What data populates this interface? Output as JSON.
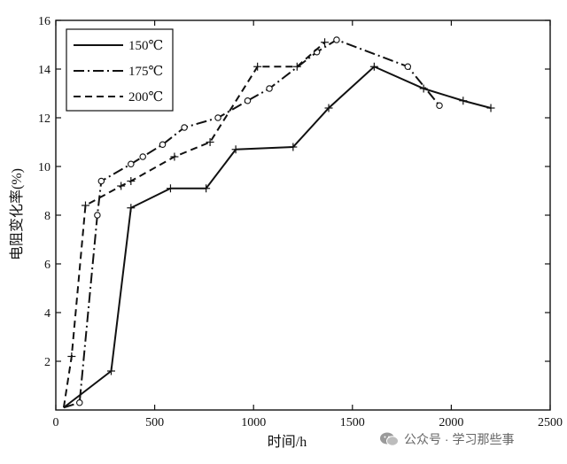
{
  "chart_data": {
    "type": "line",
    "xlabel": "时间/h",
    "ylabel": "电阻变化率(%)",
    "xlim": [
      0,
      2500
    ],
    "ylim": [
      0,
      16
    ],
    "xticks": [
      0,
      500,
      1000,
      1500,
      2000,
      2500
    ],
    "yticks": [
      2,
      4,
      6,
      8,
      10,
      12,
      14,
      16
    ],
    "grid": false,
    "legend_position": "top-left",
    "series": [
      {
        "name": "150℃",
        "line_style": "solid",
        "marker": "plus",
        "x": [
          40,
          280,
          380,
          580,
          760,
          910,
          1200,
          1380,
          1610,
          1860,
          2060,
          2200
        ],
        "y": [
          0.1,
          1.6,
          8.3,
          9.1,
          9.1,
          10.7,
          10.8,
          12.4,
          14.1,
          13.2,
          12.7,
          12.4
        ]
      },
      {
        "name": "175℃",
        "line_style": "dashdot",
        "marker": "circle",
        "x": [
          40,
          120,
          210,
          230,
          380,
          440,
          540,
          650,
          820,
          970,
          1080,
          1320,
          1420,
          1780,
          1940
        ],
        "y": [
          0.1,
          0.3,
          8.0,
          9.4,
          10.1,
          10.4,
          10.9,
          11.6,
          12.0,
          12.7,
          13.2,
          14.7,
          15.2,
          14.1,
          12.5
        ]
      },
      {
        "name": "200℃",
        "line_style": "dashed",
        "marker": "plus",
        "x": [
          40,
          80,
          150,
          330,
          380,
          600,
          780,
          1020,
          1220,
          1360
        ],
        "y": [
          0.1,
          2.2,
          8.4,
          9.2,
          9.4,
          10.4,
          11.0,
          14.1,
          14.1,
          15.1
        ]
      }
    ]
  },
  "watermark": {
    "text": "公众号 · 学习那些事",
    "icon": "wechat-icon"
  }
}
